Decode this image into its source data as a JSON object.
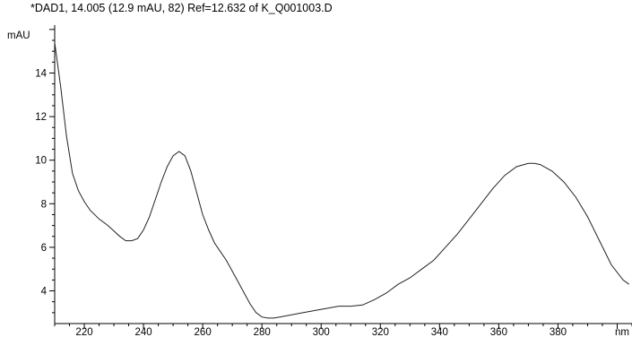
{
  "chart_data": {
    "type": "line",
    "title": "*DAD1, 14.005 (12.9 mAU, 82) Ref=12.632 of K_Q001003.D",
    "ylabel": "mAU",
    "xlabel": "nm",
    "xlim": [
      210,
      405
    ],
    "ylim": [
      2.5,
      16.2
    ],
    "xticks": [
      220,
      240,
      260,
      280,
      300,
      320,
      340,
      360,
      380
    ],
    "yticks": [
      4,
      6,
      8,
      10,
      12,
      14
    ],
    "series": [
      {
        "x": [
          210,
          212,
          214,
          216,
          218,
          220,
          222,
          225,
          228,
          232,
          234,
          236,
          238,
          240,
          242,
          244,
          246,
          248,
          250,
          252,
          254,
          256,
          258,
          260,
          262,
          264,
          266,
          268,
          270,
          272,
          274,
          276,
          278,
          280,
          282,
          284,
          286,
          290,
          294,
          298,
          302,
          306,
          310,
          314,
          318,
          322,
          326,
          330,
          334,
          338,
          342,
          346,
          350,
          354,
          358,
          362,
          366,
          370,
          372,
          374,
          378,
          382,
          386,
          390,
          394,
          398,
          402,
          404
        ],
        "y": [
          15.4,
          13.4,
          11.1,
          9.4,
          8.6,
          8.1,
          7.7,
          7.3,
          7.0,
          6.5,
          6.3,
          6.3,
          6.4,
          6.8,
          7.4,
          8.2,
          9.0,
          9.7,
          10.2,
          10.4,
          10.2,
          9.5,
          8.5,
          7.5,
          6.8,
          6.2,
          5.8,
          5.4,
          4.9,
          4.4,
          3.9,
          3.4,
          3.0,
          2.8,
          2.75,
          2.75,
          2.8,
          2.9,
          3.0,
          3.1,
          3.2,
          3.3,
          3.3,
          3.35,
          3.6,
          3.9,
          4.3,
          4.6,
          5.0,
          5.4,
          6.0,
          6.6,
          7.3,
          8.0,
          8.7,
          9.3,
          9.7,
          9.85,
          9.85,
          9.8,
          9.5,
          9.0,
          8.3,
          7.4,
          6.3,
          5.2,
          4.5,
          4.3
        ]
      }
    ],
    "grid": false
  }
}
